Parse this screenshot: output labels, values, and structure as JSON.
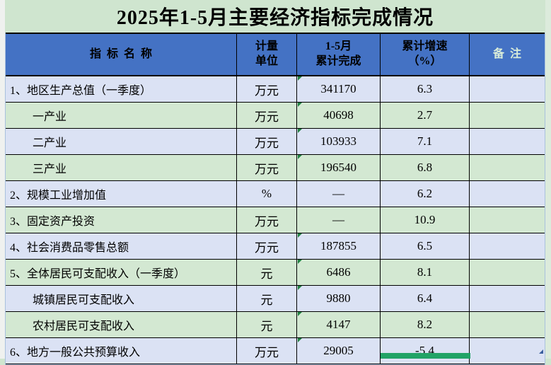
{
  "page": {
    "title": "2025年1-5月主要经济指标完成情况"
  },
  "colors": {
    "page_background": "#cfe5cf",
    "header_background": "#4472c4",
    "row_blue": "#dbe2f4",
    "row_green": "#d3e8d2",
    "grid_border": "#000000",
    "outer_border_light": "#a9c1dd",
    "note_header_text": "#d9ecd9",
    "error_marker_green": "#1f8040",
    "selection_border_green": "#21a366",
    "fill_handle_blue": "#3a5f9e"
  },
  "table": {
    "headers": {
      "indicator": "指  标  名  称",
      "unit_line1": "计量",
      "unit_line2": "单位",
      "value_line1": "1-5月",
      "value_line2": "累计完成",
      "growth_line1": "累计增速",
      "growth_line2": "（%）",
      "note": "备  注"
    },
    "rows": [
      {
        "name": "1、地区生产总值（一季度）",
        "unit": "万元",
        "value": "341170",
        "growth": "6.3",
        "note": "",
        "indent": false,
        "marker": true
      },
      {
        "name": "一产业",
        "unit": "万元",
        "value": "40698",
        "growth": "2.7",
        "note": "",
        "indent": true,
        "marker": true
      },
      {
        "name": "二产业",
        "unit": "万元",
        "value": "103933",
        "growth": "7.1",
        "note": "",
        "indent": true,
        "marker": true
      },
      {
        "name": "三产业",
        "unit": "万元",
        "value": "196540",
        "growth": "6.8",
        "note": "",
        "indent": true,
        "marker": true
      },
      {
        "name": "2、规模工业增加值",
        "unit": "%",
        "value": "—",
        "growth": "6.2",
        "note": "",
        "indent": false,
        "marker": false
      },
      {
        "name": "3、固定资产投资",
        "unit": "万元",
        "value": "—",
        "growth": "10.9",
        "note": "",
        "indent": false,
        "marker": false
      },
      {
        "name": "4、社会消费品零售总额",
        "unit": "万元",
        "value": "187855",
        "growth": "6.5",
        "note": "",
        "indent": false,
        "marker": true
      },
      {
        "name": "5、全体居民可支配收入（一季度）",
        "unit": "元",
        "value": "6486",
        "growth": "8.1",
        "note": "",
        "indent": false,
        "marker": true
      },
      {
        "name": "城镇居民可支配收入",
        "unit": "元",
        "value": "9880",
        "growth": "6.4",
        "note": "",
        "indent": true,
        "marker": true
      },
      {
        "name": "农村居民可支配收入",
        "unit": "元",
        "value": "4147",
        "growth": "8.2",
        "note": "",
        "indent": true,
        "marker": true
      },
      {
        "name": "6、地方一般公共预算收入",
        "unit": "万元",
        "value": "29005",
        "growth": "-5.4",
        "note": "",
        "indent": false,
        "marker": true
      }
    ]
  }
}
